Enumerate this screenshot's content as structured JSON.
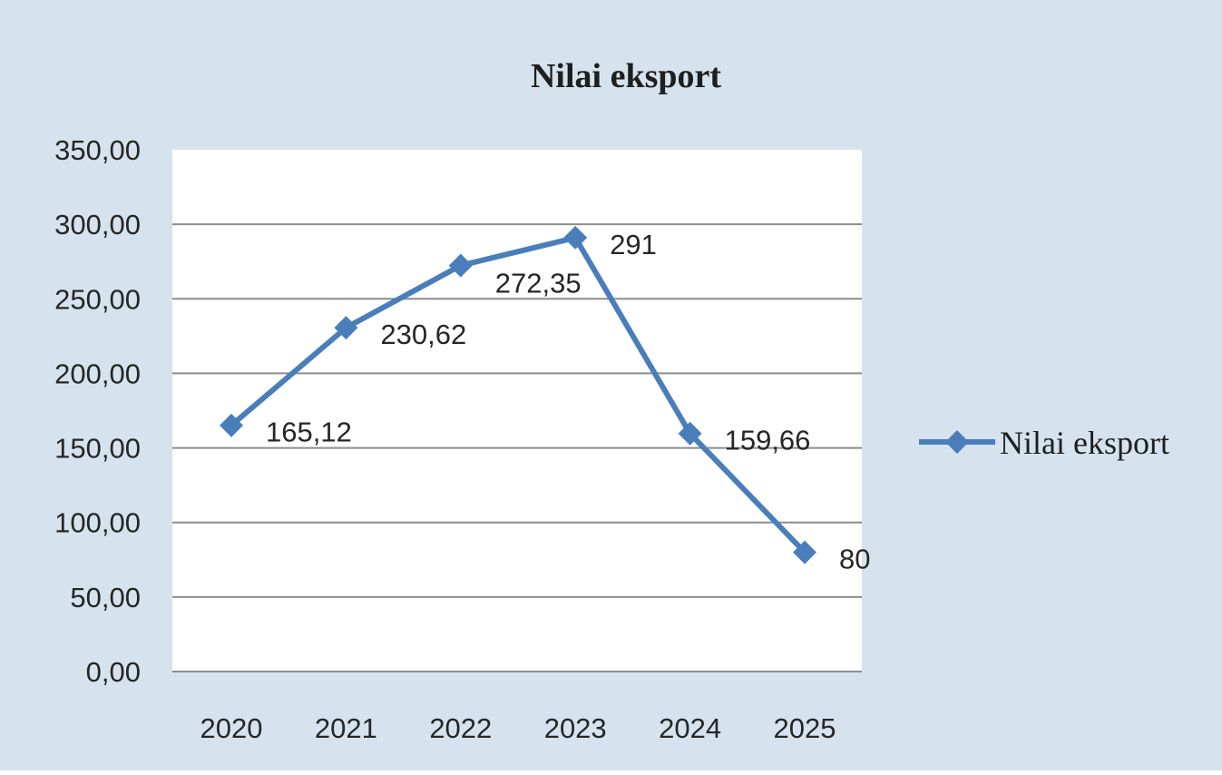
{
  "colors": {
    "outer_background": "#d6e3ef",
    "plot_background": "#ffffff",
    "gridline": "#8c8c8c",
    "series_line": "#4a7ebb",
    "text": "#262626"
  },
  "chart_data": {
    "type": "line",
    "title": "Nilai eksport",
    "xlabel": "",
    "ylabel": "",
    "categories": [
      "2020",
      "2021",
      "2022",
      "2023",
      "2024",
      "2025"
    ],
    "series": [
      {
        "name": "Nilai eksport",
        "values": [
          165.12,
          230.62,
          272.35,
          291,
          159.66,
          80
        ],
        "data_labels": [
          "165,12",
          "230,62",
          "272,35",
          "291",
          "159,66",
          "80"
        ],
        "marker": "diamond"
      }
    ],
    "ylim": [
      0,
      350
    ],
    "y_ticks": [
      0,
      50,
      100,
      150,
      200,
      250,
      300,
      350
    ],
    "y_tick_labels": [
      "0,00",
      "50,00",
      "100,00",
      "150,00",
      "200,00",
      "250,00",
      "300,00",
      "350,00"
    ],
    "grid": true,
    "legend_position": "right"
  }
}
